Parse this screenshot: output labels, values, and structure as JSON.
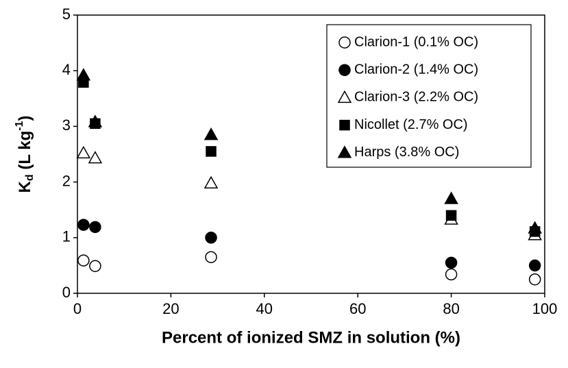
{
  "chart_data": {
    "type": "scatter",
    "xlabel": "Percent of ionized SMZ in solution (%)",
    "ylabel": [
      "K",
      "d",
      " (L kg",
      "-1",
      ")"
    ],
    "x": [
      1.3,
      3.8,
      28.6,
      80,
      97.9
    ],
    "xlim": [
      0,
      100
    ],
    "xticks": [
      0,
      20,
      40,
      60,
      80,
      100
    ],
    "ylim": [
      0,
      5
    ],
    "yticks": [
      0,
      1,
      2,
      3,
      4,
      5
    ],
    "grid": false,
    "legend": "upper right",
    "series": [
      {
        "name": "Clarion-1 (0.1% OC)",
        "marker": "circle",
        "filled": false,
        "color": "#000000",
        "values": [
          0.59,
          0.49,
          0.65,
          0.34,
          0.25
        ]
      },
      {
        "name": "Clarion-2 (1.4% OC)",
        "marker": "circle",
        "filled": true,
        "color": "#000000",
        "values": [
          1.23,
          1.19,
          1.0,
          0.55,
          0.5
        ]
      },
      {
        "name": "Clarion-3 (2.2% OC)",
        "marker": "triangle",
        "filled": false,
        "color": "#000000",
        "values": [
          2.52,
          2.43,
          1.98,
          1.33,
          1.05
        ]
      },
      {
        "name": "Nicollet (2.7% OC)",
        "marker": "square",
        "filled": true,
        "color": "#000000",
        "values": [
          3.79,
          3.05,
          2.55,
          1.4,
          1.11
        ]
      },
      {
        "name": "Harps (3.8% OC)",
        "marker": "triangle",
        "filled": true,
        "color": "#000000",
        "values": [
          3.92,
          3.08,
          2.85,
          1.7,
          1.17
        ]
      }
    ]
  }
}
